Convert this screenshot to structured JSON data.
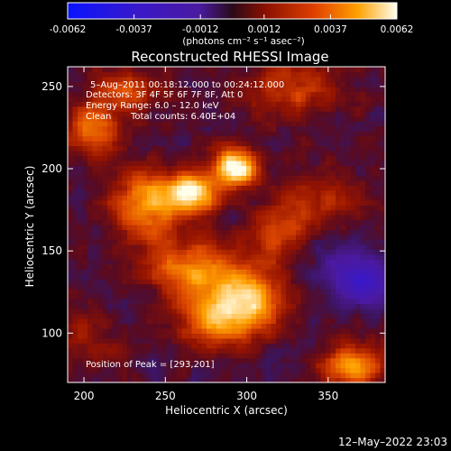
{
  "colorbar": {
    "ticks": [
      "-0.0062",
      "-0.0037",
      "-0.0012",
      "0.0012",
      "0.0037",
      "0.0062"
    ],
    "tick_values": [
      -0.0062,
      -0.0037,
      -0.0012,
      0.0012,
      0.0037,
      0.0062
    ],
    "range": [
      -0.0062,
      0.0062
    ],
    "units_label": "(photons cm⁻² s⁻¹ asec⁻²)"
  },
  "chart_data": {
    "type": "heatmap",
    "title": "Reconstructed RHESSI Image",
    "xlabel": "Heliocentric X (arcsec)",
    "ylabel": "Heliocentric Y (arcsec)",
    "xlim": [
      190,
      385
    ],
    "ylim": [
      70,
      262
    ],
    "xticks": [
      200,
      250,
      300,
      350
    ],
    "yticks": [
      100,
      150,
      200,
      250
    ],
    "colormap": "blue-purple-red-yellow-white (diverging, RHESSI)",
    "sources": [
      {
        "x": 293,
        "y": 201,
        "sx": 10,
        "sy": 8,
        "amp": 1.0
      },
      {
        "x": 266,
        "y": 185,
        "sx": 11,
        "sy": 9,
        "amp": 0.9
      },
      {
        "x": 238,
        "y": 178,
        "sx": 14,
        "sy": 16,
        "amp": 0.62
      },
      {
        "x": 300,
        "y": 120,
        "sx": 15,
        "sy": 13,
        "amp": 0.78
      },
      {
        "x": 268,
        "y": 140,
        "sx": 18,
        "sy": 12,
        "amp": 0.6
      },
      {
        "x": 278,
        "y": 108,
        "sx": 16,
        "sy": 11,
        "amp": 0.48
      },
      {
        "x": 365,
        "y": 80,
        "sx": 14,
        "sy": 10,
        "amp": 0.58
      },
      {
        "x": 205,
        "y": 225,
        "sx": 12,
        "sy": 12,
        "amp": 0.46
      },
      {
        "x": 228,
        "y": 248,
        "sx": 14,
        "sy": 10,
        "amp": 0.4
      },
      {
        "x": 330,
        "y": 250,
        "sx": 22,
        "sy": 14,
        "amp": 0.36
      },
      {
        "x": 345,
        "y": 180,
        "sx": 16,
        "sy": 14,
        "amp": 0.3
      },
      {
        "x": 320,
        "y": 160,
        "sx": 12,
        "sy": 14,
        "amp": 0.34
      },
      {
        "x": 200,
        "y": 95,
        "sx": 16,
        "sy": 14,
        "amp": 0.22
      }
    ],
    "negative_sources": [
      {
        "x": 372,
        "y": 130,
        "sx": 12,
        "sy": 9,
        "amp": -0.55
      },
      {
        "x": 355,
        "y": 145,
        "sx": 14,
        "sy": 12,
        "amp": -0.18
      }
    ],
    "peak": {
      "x": 293,
      "y": 201
    }
  },
  "annotations": {
    "time": "5–Aug–2011 00:18:12.000 to 00:24:12.000",
    "detectors": "Detectors: 3F 4F 5F 6F 7F 8F, Att 0",
    "energy": "Energy Range: 6.0 – 12.0 keV",
    "clean": "Clean",
    "total_counts": "Total counts: 6.40E+04",
    "peak_position": "Position of Peak = [293,201]"
  },
  "footer": {
    "timestamp": "12–May–2022 23:03"
  }
}
